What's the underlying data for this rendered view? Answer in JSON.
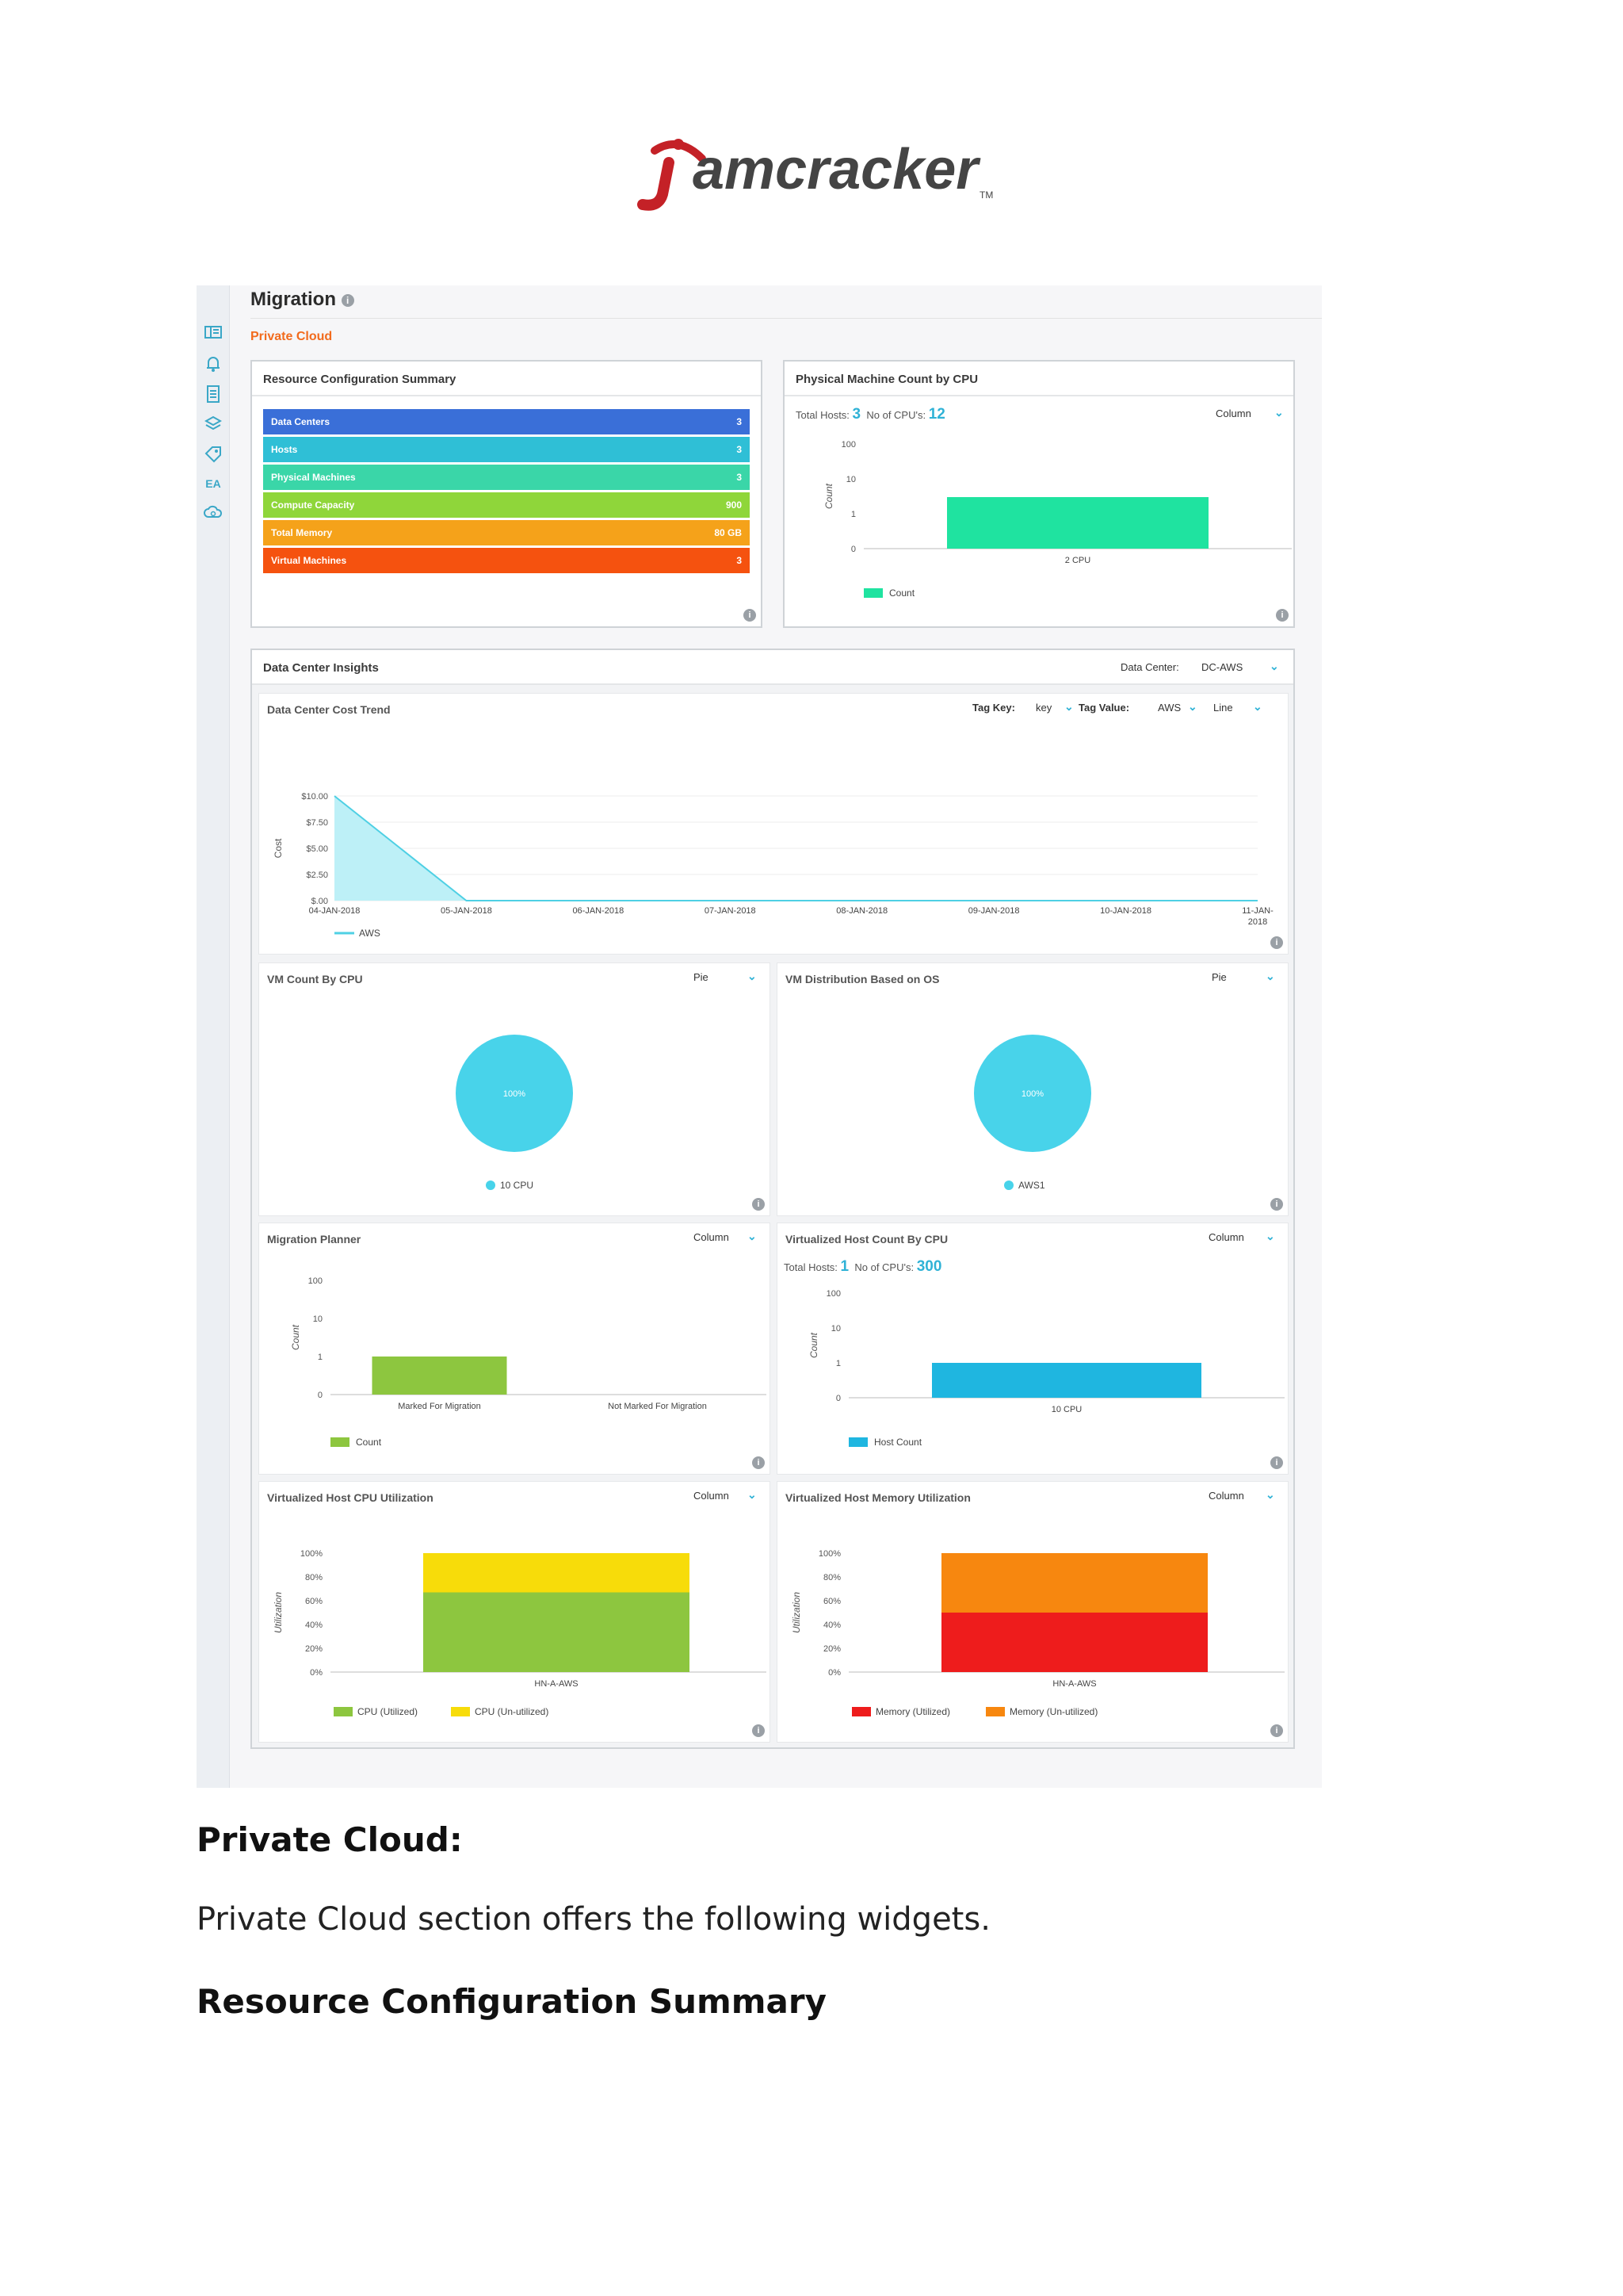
{
  "brand": {
    "logo_text": "amcracker",
    "logo_color": "#c42127",
    "text_color": "#444444"
  },
  "page": {
    "title": "Migration",
    "subtitle": "Private Cloud",
    "info_icon": "i"
  },
  "sidebar_icons": [
    "dashboard-icon",
    "bell-icon",
    "document-icon",
    "layers-icon",
    "tag-icon",
    "ea-icon",
    "cloud-settings-icon"
  ],
  "sidebar_ea_label": "EA",
  "resource_summary": {
    "title": "Resource Configuration Summary",
    "rows": [
      {
        "label": "Data Centers",
        "value": "3",
        "color": "#3a6fd8"
      },
      {
        "label": "Hosts",
        "value": "3",
        "color": "#2fbfd6"
      },
      {
        "label": "Physical Machines",
        "value": "3",
        "color": "#3ad6a8"
      },
      {
        "label": "Compute Capacity",
        "value": "900",
        "color": "#8fd63a"
      },
      {
        "label": "Total Memory",
        "value": "80 GB",
        "color": "#f5a21a"
      },
      {
        "label": "Virtual Machines",
        "value": "3",
        "color": "#f5520f"
      }
    ]
  },
  "physical_machine": {
    "title": "Physical Machine Count by CPU",
    "total_hosts_label": "Total Hosts:",
    "total_hosts": "3",
    "cpus_label": "No of CPU's:",
    "cpus": "12",
    "chart_type_label": "Column"
  },
  "dc_insights": {
    "title": "Data Center Insights",
    "dc_label": "Data Center:",
    "dc_value": "DC-AWS",
    "cost_trend": {
      "title": "Data Center Cost Trend",
      "tag_key_label": "Tag Key:",
      "tag_key_value": "key",
      "tag_value_label": "Tag Value:",
      "tag_value_value": "AWS",
      "chart_type_label": "Line"
    },
    "vm_count": {
      "title": "VM Count By CPU",
      "chart_type_label": "Pie"
    },
    "vm_os": {
      "title": "VM Distribution Based on OS",
      "chart_type_label": "Pie"
    },
    "migration_planner": {
      "title": "Migration Planner",
      "chart_type_label": "Column"
    },
    "virt_host_count": {
      "title": "Virtualized Host Count By CPU",
      "chart_type_label": "Column",
      "total_hosts_label": "Total Hosts:",
      "total_hosts": "1",
      "cpus_label": "No of CPU's:",
      "cpus": "300"
    },
    "cpu_util": {
      "title": "Virtualized Host CPU Utilization",
      "chart_type_label": "Column"
    },
    "mem_util": {
      "title": "Virtualized Host Memory Utilization",
      "chart_type_label": "Column"
    }
  },
  "chart_data": [
    {
      "id": "physical_machine",
      "type": "bar",
      "categories": [
        "2 CPU"
      ],
      "series": [
        {
          "name": "Count",
          "values": [
            3
          ],
          "color": "#1fe3a0"
        }
      ],
      "ylabel": "Count",
      "yticks": [
        "0",
        "1",
        "10",
        "100"
      ],
      "scale": "log"
    },
    {
      "id": "cost_trend",
      "type": "area",
      "x": [
        "04-JAN-2018",
        "05-JAN-2018",
        "06-JAN-2018",
        "07-JAN-2018",
        "08-JAN-2018",
        "09-JAN-2018",
        "10-JAN-2018",
        "11-JAN-2018"
      ],
      "series": [
        {
          "name": "AWS",
          "values": [
            10,
            0,
            0,
            0,
            0,
            0,
            0,
            0
          ],
          "color": "#4fd0e4"
        }
      ],
      "ylabel": "Cost",
      "yticks": [
        "$.00",
        "$2.50",
        "$5.00",
        "$7.50",
        "$10.00"
      ],
      "ylim": [
        0,
        10
      ]
    },
    {
      "id": "vm_count",
      "type": "pie",
      "labels": [
        "10 CPU"
      ],
      "values": [
        100
      ],
      "slice_label": "100%",
      "color": "#48d3ea"
    },
    {
      "id": "vm_os",
      "type": "pie",
      "labels": [
        "AWS1"
      ],
      "values": [
        100
      ],
      "slice_label": "100%",
      "color": "#48d3ea"
    },
    {
      "id": "migration_planner",
      "type": "bar",
      "categories": [
        "Marked For Migration",
        "Not Marked For Migration"
      ],
      "series": [
        {
          "name": "Count",
          "values": [
            1,
            0
          ],
          "color": "#8dc63f"
        }
      ],
      "ylabel": "Count",
      "yticks": [
        "0",
        "1",
        "10",
        "100"
      ],
      "scale": "log"
    },
    {
      "id": "virt_host_count",
      "type": "bar",
      "categories": [
        "10 CPU"
      ],
      "series": [
        {
          "name": "Host Count",
          "values": [
            1
          ],
          "color": "#1fb6e0"
        }
      ],
      "ylabel": "Count",
      "yticks": [
        "0",
        "1",
        "10",
        "100"
      ],
      "scale": "log"
    },
    {
      "id": "cpu_util",
      "type": "bar",
      "stacked": true,
      "categories": [
        "HN-A-AWS"
      ],
      "series": [
        {
          "name": "CPU (Utilized)",
          "values": [
            67
          ],
          "color": "#8dc63f"
        },
        {
          "name": "CPU (Un-utilized)",
          "values": [
            33
          ],
          "color": "#f7dc0a"
        }
      ],
      "ylabel": "Utilization",
      "yticks": [
        "0%",
        "20%",
        "40%",
        "60%",
        "80%",
        "100%"
      ],
      "ylim": [
        0,
        100
      ]
    },
    {
      "id": "mem_util",
      "type": "bar",
      "stacked": true,
      "categories": [
        "HN-A-AWS"
      ],
      "series": [
        {
          "name": "Memory (Utilized)",
          "values": [
            50
          ],
          "color": "#ee1c1c"
        },
        {
          "name": "Memory (Un-utilized)",
          "values": [
            50
          ],
          "color": "#f7870f"
        }
      ],
      "ylabel": "Utilization",
      "yticks": [
        "0%",
        "20%",
        "40%",
        "60%",
        "80%",
        "100%"
      ],
      "ylim": [
        0,
        100
      ]
    }
  ],
  "document": {
    "heading1": "Private Cloud:",
    "paragraph": "Private Cloud section offers the following widgets.",
    "heading2": "Resource Configuration Summary"
  }
}
